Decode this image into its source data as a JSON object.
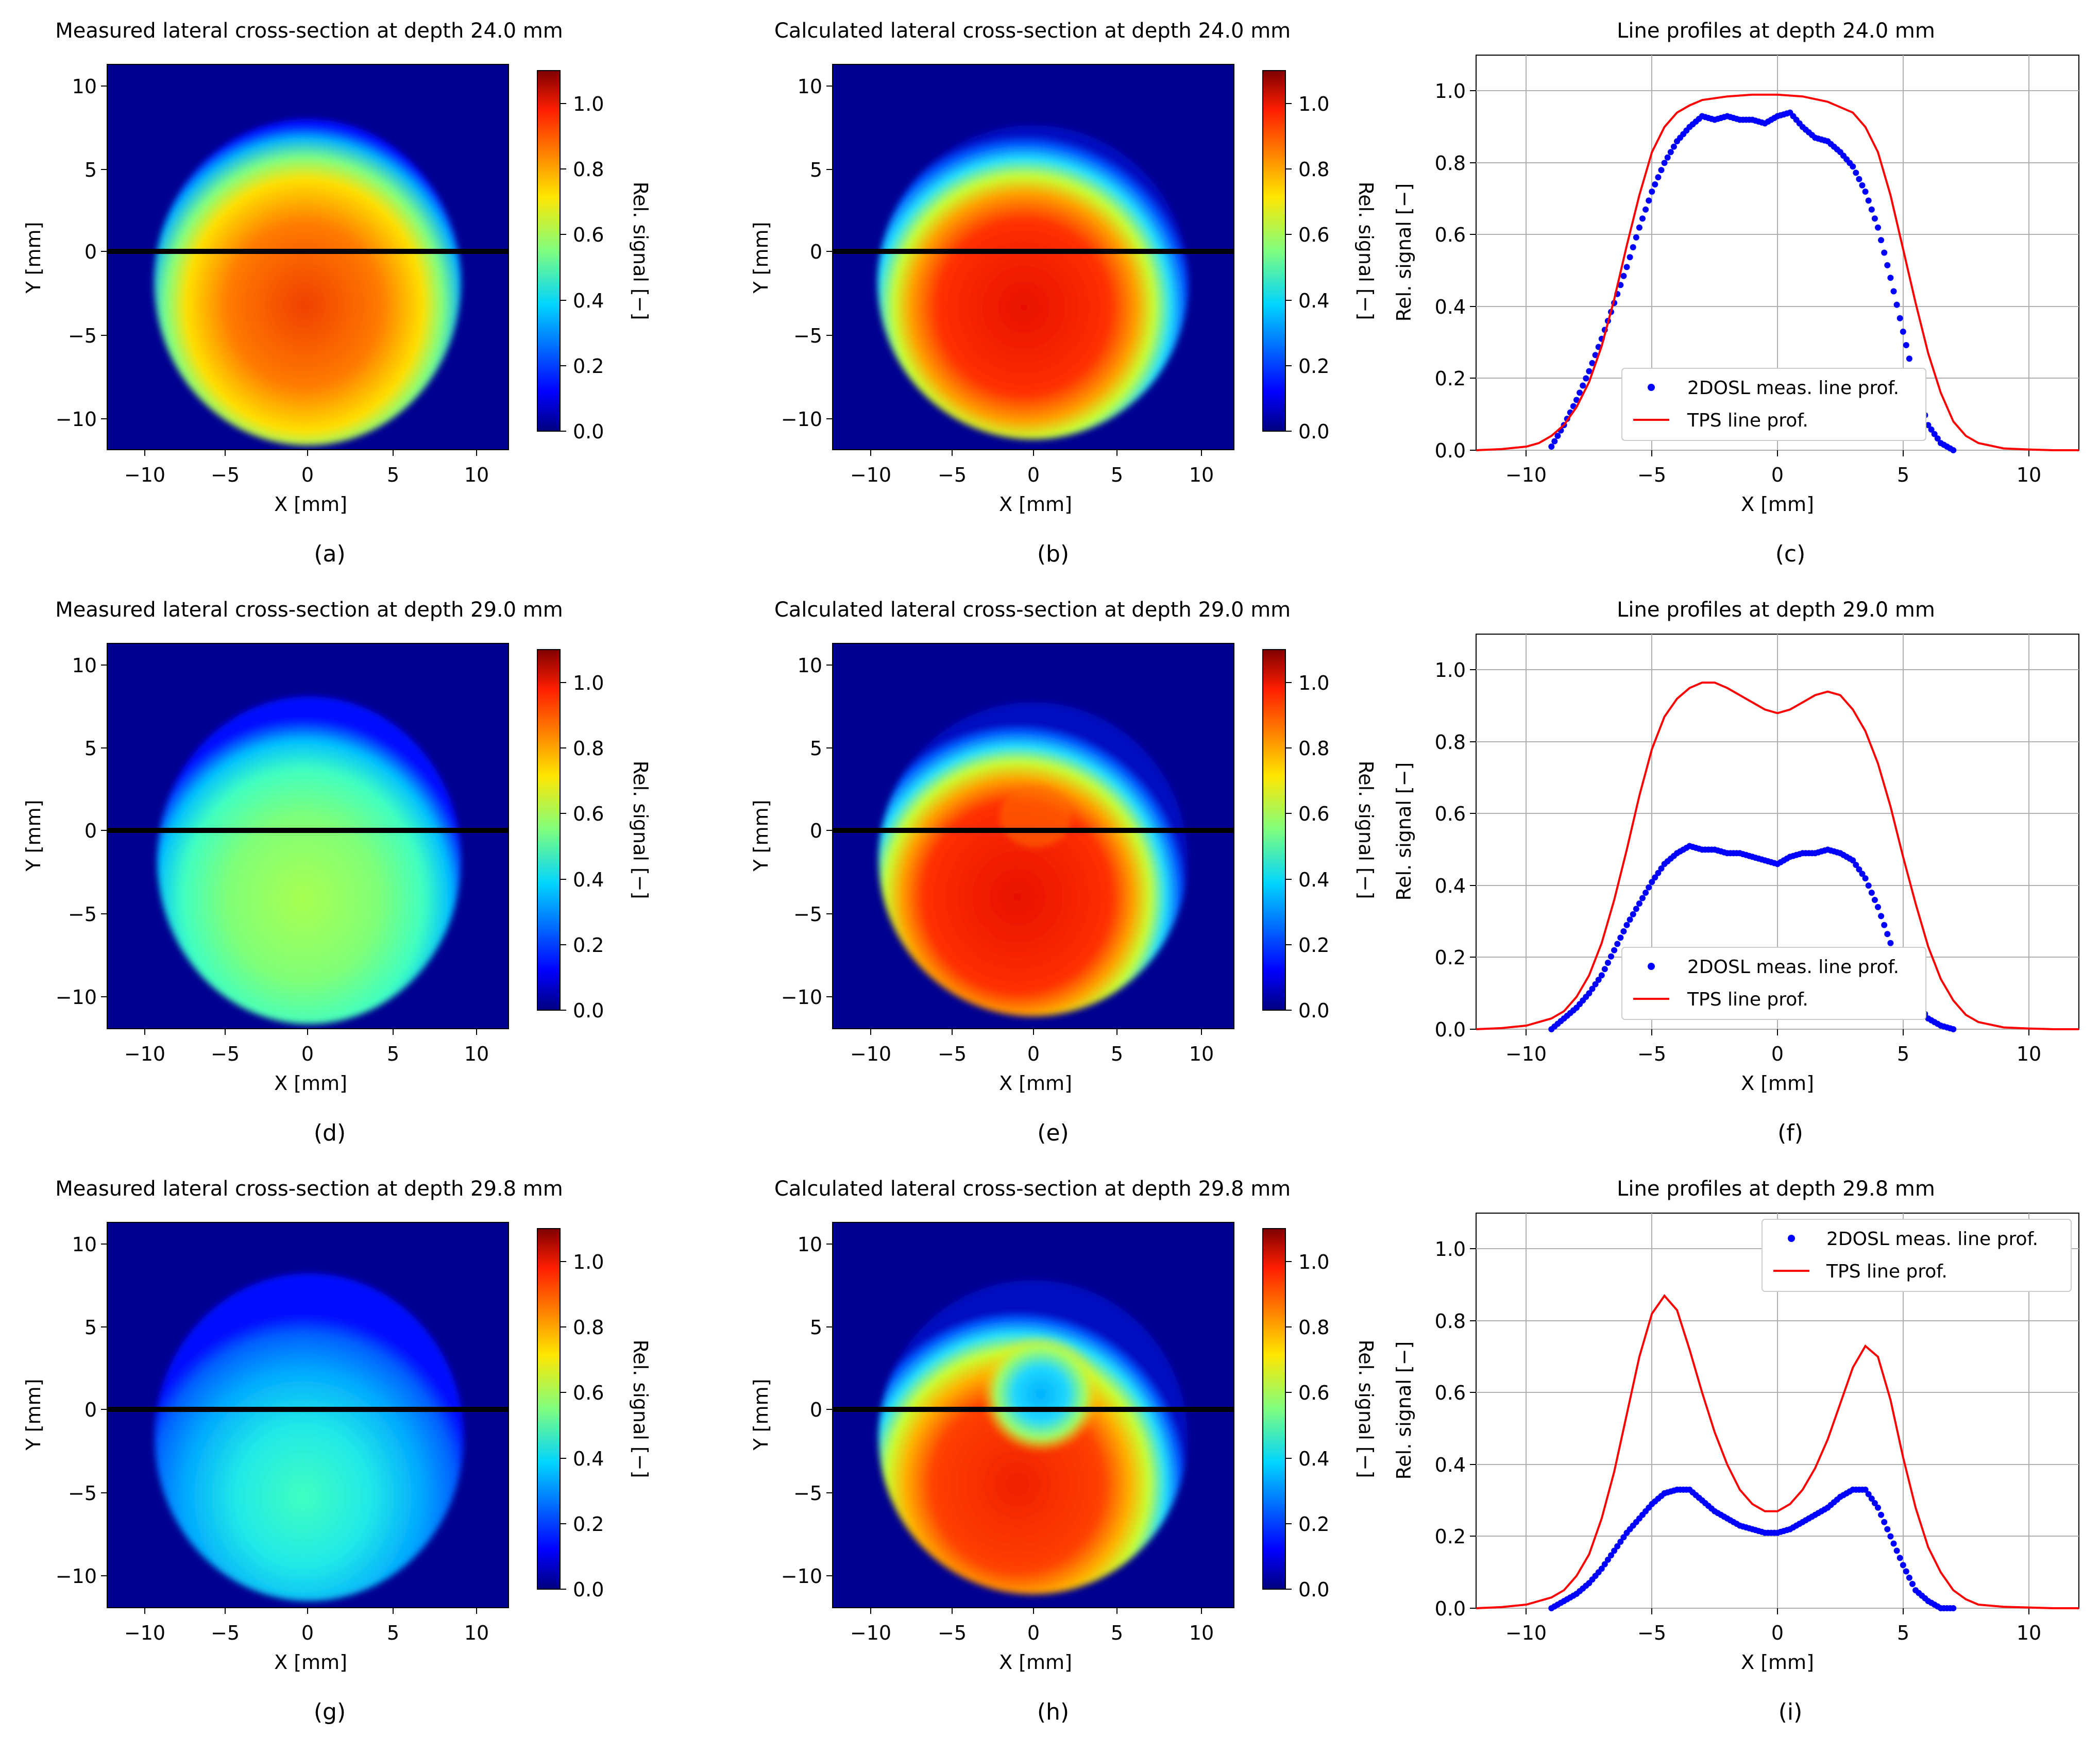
{
  "figure": {
    "colorbar": {
      "label": "Rel. signal [−]",
      "ticks": [
        "0.0",
        "0.2",
        "0.4",
        "0.6",
        "0.8",
        "1.0"
      ],
      "range": [
        0,
        1.1
      ]
    },
    "axes_common": {
      "xlabel_map": "X [mm]",
      "ylabel_map": "Y [mm]",
      "xlabel_line": "X [mm]",
      "ylabel_line": "Rel. signal [−]"
    },
    "rows": [
      {
        "depth": "24.0",
        "measured_title": "Measured lateral cross-section at depth 24.0 mm",
        "calculated_title": "Calculated lateral cross-section at depth 24.0 mm",
        "profile_title": "Line profiles at depth 24.0 mm",
        "panel_labels": [
          "(a)",
          "(b)",
          "(c)"
        ],
        "legend_position": "lower-right"
      },
      {
        "depth": "29.0",
        "measured_title": "Measured lateral cross-section at depth 29.0 mm",
        "calculated_title": "Calculated lateral cross-section at depth 29.0 mm",
        "profile_title": "Line profiles at depth 29.0 mm",
        "panel_labels": [
          "(d)",
          "(e)",
          "(f)"
        ],
        "legend_position": "lower-right"
      },
      {
        "depth": "29.8",
        "measured_title": "Measured lateral cross-section at depth 29.8 mm",
        "calculated_title": "Calculated lateral cross-section at depth 29.8 mm",
        "profile_title": "Line profiles at depth 29.8 mm",
        "panel_labels": [
          "(g)",
          "(h)",
          "(i)"
        ],
        "legend_position": "upper-right"
      }
    ],
    "legend": {
      "measured": "2DOSL meas. line prof.",
      "tps": "TPS line prof."
    },
    "colors": {
      "measured": "#0000ff",
      "tps": "#ff0000",
      "cut_line": "#000000",
      "grid": "#b0b0b0"
    }
  },
  "chart_data": [
    {
      "type": "line",
      "title": "Line profiles at depth 24.0 mm",
      "xlabel": "X [mm]",
      "ylabel": "Rel. signal [−]",
      "xlim": [
        -12,
        12
      ],
      "ylim": [
        0,
        1.1
      ],
      "xticks": [
        -10,
        -5,
        0,
        5,
        10
      ],
      "yticks": [
        0.0,
        0.2,
        0.4,
        0.6,
        0.8,
        1.0
      ],
      "grid": true,
      "series": [
        {
          "name": "2DOSL meas. line prof.",
          "style": "dots",
          "x": [
            -9,
            -8.5,
            -8,
            -7.5,
            -7,
            -6.5,
            -6,
            -5.5,
            -5,
            -4.5,
            -4,
            -3.5,
            -3,
            -2.5,
            -2,
            -1.5,
            -1,
            -0.5,
            0,
            0.5,
            1,
            1.5,
            2,
            2.5,
            3,
            3.5,
            4,
            4.5,
            5,
            5.5,
            6,
            6.5,
            7
          ],
          "y": [
            0.01,
            0.07,
            0.14,
            0.22,
            0.31,
            0.41,
            0.51,
            0.62,
            0.72,
            0.8,
            0.86,
            0.9,
            0.93,
            0.92,
            0.93,
            0.92,
            0.92,
            0.91,
            0.93,
            0.94,
            0.9,
            0.87,
            0.86,
            0.83,
            0.79,
            0.72,
            0.62,
            0.48,
            0.33,
            0.18,
            0.07,
            0.02,
            0.0
          ]
        },
        {
          "name": "TPS line prof.",
          "style": "line",
          "x": [
            -12,
            -11,
            -10,
            -9.5,
            -9,
            -8.5,
            -8,
            -7.5,
            -7,
            -6.5,
            -6,
            -5.5,
            -5,
            -4.5,
            -4,
            -3.5,
            -3,
            -2,
            -1,
            0,
            1,
            2,
            3,
            3.5,
            4,
            4.5,
            5,
            5.5,
            6,
            6.5,
            7,
            7.5,
            8,
            9,
            10,
            11,
            12
          ],
          "y": [
            0.0,
            0.003,
            0.01,
            0.02,
            0.04,
            0.07,
            0.12,
            0.19,
            0.29,
            0.42,
            0.57,
            0.71,
            0.83,
            0.9,
            0.94,
            0.96,
            0.975,
            0.985,
            0.99,
            0.99,
            0.985,
            0.97,
            0.94,
            0.9,
            0.83,
            0.71,
            0.56,
            0.41,
            0.27,
            0.16,
            0.08,
            0.04,
            0.02,
            0.005,
            0.002,
            0.0,
            0.0
          ]
        }
      ],
      "legend": "lower-right"
    },
    {
      "type": "line",
      "title": "Line profiles at depth 29.0 mm",
      "xlabel": "X [mm]",
      "ylabel": "Rel. signal [−]",
      "xlim": [
        -12,
        12
      ],
      "ylim": [
        0,
        1.1
      ],
      "xticks": [
        -10,
        -5,
        0,
        5,
        10
      ],
      "yticks": [
        0.0,
        0.2,
        0.4,
        0.6,
        0.8,
        1.0
      ],
      "grid": true,
      "series": [
        {
          "name": "2DOSL meas. line prof.",
          "style": "dots",
          "x": [
            -9,
            -8.5,
            -8,
            -7.5,
            -7,
            -6.5,
            -6,
            -5.5,
            -5,
            -4.5,
            -4,
            -3.5,
            -3,
            -2.5,
            -2,
            -1.5,
            -1,
            -0.5,
            0,
            0.5,
            1,
            1.5,
            2,
            2.5,
            3,
            3.5,
            4,
            4.5,
            5,
            5.5,
            6,
            6.5,
            7
          ],
          "y": [
            0.0,
            0.03,
            0.06,
            0.1,
            0.15,
            0.22,
            0.29,
            0.35,
            0.41,
            0.46,
            0.49,
            0.51,
            0.5,
            0.5,
            0.49,
            0.49,
            0.48,
            0.47,
            0.46,
            0.48,
            0.49,
            0.49,
            0.5,
            0.49,
            0.47,
            0.42,
            0.34,
            0.24,
            0.15,
            0.08,
            0.03,
            0.01,
            0.0
          ]
        },
        {
          "name": "TPS line prof.",
          "style": "line",
          "x": [
            -12,
            -11,
            -10,
            -9,
            -8.5,
            -8,
            -7.5,
            -7,
            -6.5,
            -6,
            -5.5,
            -5,
            -4.5,
            -4,
            -3.5,
            -3,
            -2.5,
            -2,
            -1.5,
            -1,
            -0.5,
            0,
            0.5,
            1,
            1.5,
            2,
            2.5,
            3,
            3.5,
            4,
            4.5,
            5,
            5.5,
            6,
            6.5,
            7,
            7.5,
            8,
            9,
            10,
            11,
            12
          ],
          "y": [
            0.0,
            0.003,
            0.01,
            0.03,
            0.05,
            0.09,
            0.15,
            0.24,
            0.36,
            0.5,
            0.65,
            0.78,
            0.87,
            0.92,
            0.95,
            0.965,
            0.965,
            0.95,
            0.93,
            0.91,
            0.89,
            0.88,
            0.89,
            0.91,
            0.93,
            0.94,
            0.93,
            0.89,
            0.83,
            0.74,
            0.62,
            0.48,
            0.35,
            0.23,
            0.14,
            0.08,
            0.04,
            0.02,
            0.005,
            0.002,
            0.0,
            0.0
          ]
        }
      ],
      "legend": "lower-right"
    },
    {
      "type": "line",
      "title": "Line profiles at depth 29.8 mm",
      "xlabel": "X [mm]",
      "ylabel": "Rel. signal [−]",
      "xlim": [
        -12,
        12
      ],
      "ylim": [
        0,
        1.1
      ],
      "xticks": [
        -10,
        -5,
        0,
        5,
        10
      ],
      "yticks": [
        0.0,
        0.2,
        0.4,
        0.6,
        0.8,
        1.0
      ],
      "grid": true,
      "series": [
        {
          "name": "2DOSL meas. line prof.",
          "style": "dots",
          "x": [
            -9,
            -8.5,
            -8,
            -7.5,
            -7,
            -6.5,
            -6,
            -5.5,
            -5,
            -4.5,
            -4,
            -3.5,
            -3,
            -2.5,
            -2,
            -1.5,
            -1,
            -0.5,
            0,
            0.5,
            1,
            1.5,
            2,
            2.5,
            3,
            3.5,
            4,
            4.5,
            5,
            5.5,
            6,
            6.5,
            7
          ],
          "y": [
            0.0,
            0.02,
            0.04,
            0.07,
            0.11,
            0.16,
            0.21,
            0.25,
            0.29,
            0.32,
            0.33,
            0.33,
            0.3,
            0.27,
            0.25,
            0.23,
            0.22,
            0.21,
            0.21,
            0.22,
            0.24,
            0.26,
            0.28,
            0.31,
            0.33,
            0.33,
            0.28,
            0.2,
            0.12,
            0.05,
            0.02,
            0.0,
            0.0
          ]
        },
        {
          "name": "TPS line prof.",
          "style": "line",
          "x": [
            -12,
            -11,
            -10,
            -9,
            -8.5,
            -8,
            -7.5,
            -7,
            -6.5,
            -6,
            -5.5,
            -5,
            -4.5,
            -4,
            -3.5,
            -3,
            -2.5,
            -2,
            -1.5,
            -1,
            -0.5,
            0,
            0.5,
            1,
            1.5,
            2,
            2.5,
            3,
            3.5,
            4,
            4.5,
            5,
            5.5,
            6,
            6.5,
            7,
            7.5,
            8,
            9,
            10,
            11,
            12
          ],
          "y": [
            0.0,
            0.003,
            0.01,
            0.03,
            0.05,
            0.09,
            0.15,
            0.25,
            0.38,
            0.54,
            0.7,
            0.82,
            0.87,
            0.83,
            0.72,
            0.6,
            0.49,
            0.4,
            0.33,
            0.29,
            0.27,
            0.27,
            0.29,
            0.33,
            0.39,
            0.47,
            0.57,
            0.67,
            0.73,
            0.7,
            0.58,
            0.42,
            0.28,
            0.17,
            0.1,
            0.05,
            0.025,
            0.01,
            0.004,
            0.002,
            0.0,
            0.0
          ]
        }
      ],
      "legend": "upper-right"
    }
  ]
}
